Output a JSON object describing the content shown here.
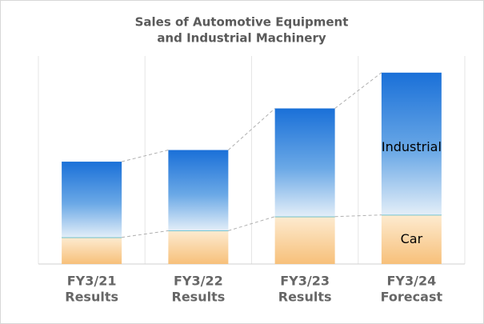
{
  "chart_data": {
    "type": "stacked_bar",
    "title": [
      "Sales of Automotive Equipment",
      "and Industrial Machinery"
    ],
    "categories": [
      [
        "FY3/21",
        "Results"
      ],
      [
        "FY3/22",
        "Results"
      ],
      [
        "FY3/23",
        "Results"
      ],
      [
        "FY3/24",
        "Forecast"
      ]
    ],
    "series": [
      {
        "name": "Car",
        "color": "#f7c07a",
        "values": [
          32,
          40,
          57,
          59
        ]
      },
      {
        "name": "Industrial",
        "color": "#1a70d8",
        "values": [
          91,
          97,
          130,
          171
        ]
      }
    ],
    "ylim": [
      0,
      250
    ],
    "grid": true
  }
}
